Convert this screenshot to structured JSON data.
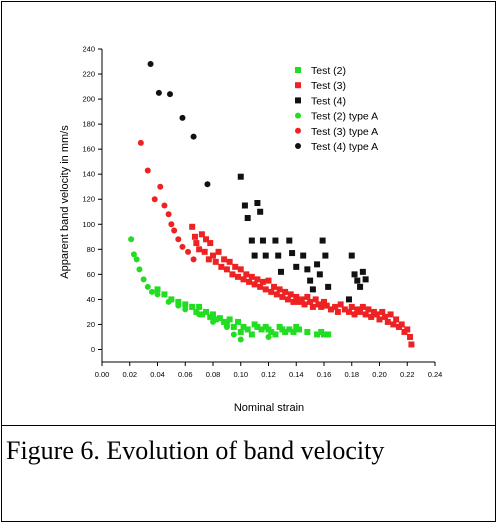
{
  "caption": "Figure 6. Evolution of band velocity",
  "chart_data": {
    "type": "scatter",
    "title": "",
    "xlabel": "Nominal strain",
    "ylabel": "Apparent band velocity in mm/s",
    "xlim": [
      0.0,
      0.24
    ],
    "ylim": [
      -10,
      240
    ],
    "xticks": [
      "0.00",
      "0.02",
      "0.04",
      "0.06",
      "0.08",
      "0.10",
      "0.12",
      "0.14",
      "0.16",
      "0.18",
      "0.20",
      "0.22",
      "0.24"
    ],
    "yticks": [
      "0",
      "20",
      "40",
      "60",
      "80",
      "100",
      "120",
      "140",
      "160",
      "180",
      "200",
      "220",
      "240"
    ],
    "grid": false,
    "legend_position": "top-right",
    "colors": {
      "test2": "#22dd22",
      "test3": "#ee2222",
      "test4": "#111111"
    },
    "series": [
      {
        "name": "Test (2)",
        "marker": "square",
        "color": "#22dd22",
        "points": [
          [
            0.04,
            48
          ],
          [
            0.045,
            44
          ],
          [
            0.05,
            40
          ],
          [
            0.055,
            38
          ],
          [
            0.06,
            36
          ],
          [
            0.065,
            34
          ],
          [
            0.068,
            30
          ],
          [
            0.07,
            34
          ],
          [
            0.072,
            28
          ],
          [
            0.075,
            30
          ],
          [
            0.078,
            26
          ],
          [
            0.08,
            28
          ],
          [
            0.082,
            24
          ],
          [
            0.085,
            25
          ],
          [
            0.088,
            22
          ],
          [
            0.09,
            20
          ],
          [
            0.092,
            24
          ],
          [
            0.095,
            18
          ],
          [
            0.098,
            22
          ],
          [
            0.1,
            14
          ],
          [
            0.102,
            18
          ],
          [
            0.105,
            16
          ],
          [
            0.108,
            12
          ],
          [
            0.11,
            20
          ],
          [
            0.112,
            18
          ],
          [
            0.115,
            16
          ],
          [
            0.118,
            18
          ],
          [
            0.12,
            16
          ],
          [
            0.122,
            14
          ],
          [
            0.125,
            12
          ],
          [
            0.128,
            18
          ],
          [
            0.13,
            16
          ],
          [
            0.132,
            14
          ],
          [
            0.135,
            16
          ],
          [
            0.138,
            14
          ],
          [
            0.14,
            18
          ],
          [
            0.142,
            16
          ],
          [
            0.148,
            14
          ],
          [
            0.155,
            12
          ],
          [
            0.158,
            14
          ],
          [
            0.16,
            12
          ],
          [
            0.163,
            12
          ]
        ]
      },
      {
        "name": "Test (3)",
        "marker": "square",
        "color": "#ee2222",
        "points": [
          [
            0.065,
            98
          ],
          [
            0.067,
            90
          ],
          [
            0.068,
            85
          ],
          [
            0.07,
            80
          ],
          [
            0.072,
            92
          ],
          [
            0.074,
            78
          ],
          [
            0.075,
            88
          ],
          [
            0.077,
            72
          ],
          [
            0.078,
            85
          ],
          [
            0.08,
            75
          ],
          [
            0.082,
            70
          ],
          [
            0.084,
            78
          ],
          [
            0.086,
            66
          ],
          [
            0.088,
            72
          ],
          [
            0.09,
            64
          ],
          [
            0.092,
            70
          ],
          [
            0.094,
            60
          ],
          [
            0.096,
            66
          ],
          [
            0.098,
            58
          ],
          [
            0.1,
            64
          ],
          [
            0.102,
            56
          ],
          [
            0.104,
            60
          ],
          [
            0.106,
            54
          ],
          [
            0.108,
            58
          ],
          [
            0.11,
            52
          ],
          [
            0.112,
            56
          ],
          [
            0.114,
            50
          ],
          [
            0.116,
            54
          ],
          [
            0.118,
            48
          ],
          [
            0.12,
            55
          ],
          [
            0.122,
            46
          ],
          [
            0.124,
            50
          ],
          [
            0.126,
            44
          ],
          [
            0.128,
            48
          ],
          [
            0.13,
            42
          ],
          [
            0.132,
            46
          ],
          [
            0.134,
            40
          ],
          [
            0.136,
            44
          ],
          [
            0.138,
            38
          ],
          [
            0.14,
            42
          ],
          [
            0.142,
            38
          ],
          [
            0.144,
            40
          ],
          [
            0.146,
            36
          ],
          [
            0.148,
            42
          ],
          [
            0.15,
            38
          ],
          [
            0.152,
            34
          ],
          [
            0.154,
            40
          ],
          [
            0.156,
            36
          ],
          [
            0.158,
            34
          ],
          [
            0.16,
            38
          ],
          [
            0.162,
            35
          ],
          [
            0.165,
            32
          ],
          [
            0.168,
            34
          ],
          [
            0.17,
            30
          ],
          [
            0.172,
            36
          ],
          [
            0.175,
            32
          ],
          [
            0.178,
            30
          ],
          [
            0.18,
            34
          ],
          [
            0.182,
            28
          ],
          [
            0.184,
            32
          ],
          [
            0.186,
            30
          ],
          [
            0.188,
            34
          ],
          [
            0.19,
            28
          ],
          [
            0.192,
            32
          ],
          [
            0.194,
            26
          ],
          [
            0.196,
            30
          ],
          [
            0.198,
            28
          ],
          [
            0.2,
            24
          ],
          [
            0.202,
            30
          ],
          [
            0.204,
            26
          ],
          [
            0.206,
            22
          ],
          [
            0.208,
            28
          ],
          [
            0.21,
            20
          ],
          [
            0.212,
            24
          ],
          [
            0.214,
            18
          ],
          [
            0.216,
            20
          ],
          [
            0.218,
            14
          ],
          [
            0.22,
            16
          ],
          [
            0.222,
            10
          ],
          [
            0.223,
            4
          ]
        ]
      },
      {
        "name": "Test (4)",
        "marker": "square",
        "color": "#111111",
        "points": [
          [
            0.1,
            138
          ],
          [
            0.103,
            115
          ],
          [
            0.105,
            105
          ],
          [
            0.108,
            87
          ],
          [
            0.11,
            75
          ],
          [
            0.112,
            117
          ],
          [
            0.114,
            110
          ],
          [
            0.116,
            87
          ],
          [
            0.118,
            75
          ],
          [
            0.125,
            87
          ],
          [
            0.127,
            75
          ],
          [
            0.129,
            62
          ],
          [
            0.135,
            87
          ],
          [
            0.137,
            77
          ],
          [
            0.14,
            66
          ],
          [
            0.145,
            75
          ],
          [
            0.148,
            64
          ],
          [
            0.15,
            55
          ],
          [
            0.152,
            48
          ],
          [
            0.155,
            68
          ],
          [
            0.157,
            60
          ],
          [
            0.159,
            87
          ],
          [
            0.161,
            75
          ],
          [
            0.163,
            50
          ],
          [
            0.18,
            75
          ],
          [
            0.182,
            60
          ],
          [
            0.184,
            55
          ],
          [
            0.186,
            50
          ],
          [
            0.188,
            62
          ],
          [
            0.19,
            56
          ],
          [
            0.178,
            40
          ]
        ]
      },
      {
        "name": "Test (2) type A",
        "marker": "circle",
        "color": "#22dd22",
        "points": [
          [
            0.021,
            88
          ],
          [
            0.023,
            76
          ],
          [
            0.025,
            72
          ],
          [
            0.027,
            64
          ],
          [
            0.03,
            56
          ],
          [
            0.033,
            50
          ],
          [
            0.036,
            46
          ],
          [
            0.04,
            44
          ],
          [
            0.048,
            38
          ],
          [
            0.055,
            35
          ],
          [
            0.06,
            32
          ],
          [
            0.07,
            28
          ],
          [
            0.08,
            22
          ],
          [
            0.09,
            18
          ],
          [
            0.095,
            12
          ],
          [
            0.1,
            8
          ],
          [
            0.12,
            10
          ]
        ]
      },
      {
        "name": "Test (3) type A",
        "marker": "circle",
        "color": "#ee2222",
        "points": [
          [
            0.028,
            165
          ],
          [
            0.033,
            143
          ],
          [
            0.038,
            120
          ],
          [
            0.042,
            130
          ],
          [
            0.045,
            115
          ],
          [
            0.048,
            108
          ],
          [
            0.05,
            100
          ],
          [
            0.052,
            95
          ],
          [
            0.055,
            88
          ],
          [
            0.058,
            82
          ],
          [
            0.062,
            78
          ],
          [
            0.066,
            72
          ]
        ]
      },
      {
        "name": "Test (4) type A",
        "marker": "circle",
        "color": "#111111",
        "points": [
          [
            0.035,
            228
          ],
          [
            0.041,
            205
          ],
          [
            0.049,
            204
          ],
          [
            0.058,
            185
          ],
          [
            0.066,
            170
          ],
          [
            0.076,
            132
          ]
        ]
      }
    ]
  }
}
